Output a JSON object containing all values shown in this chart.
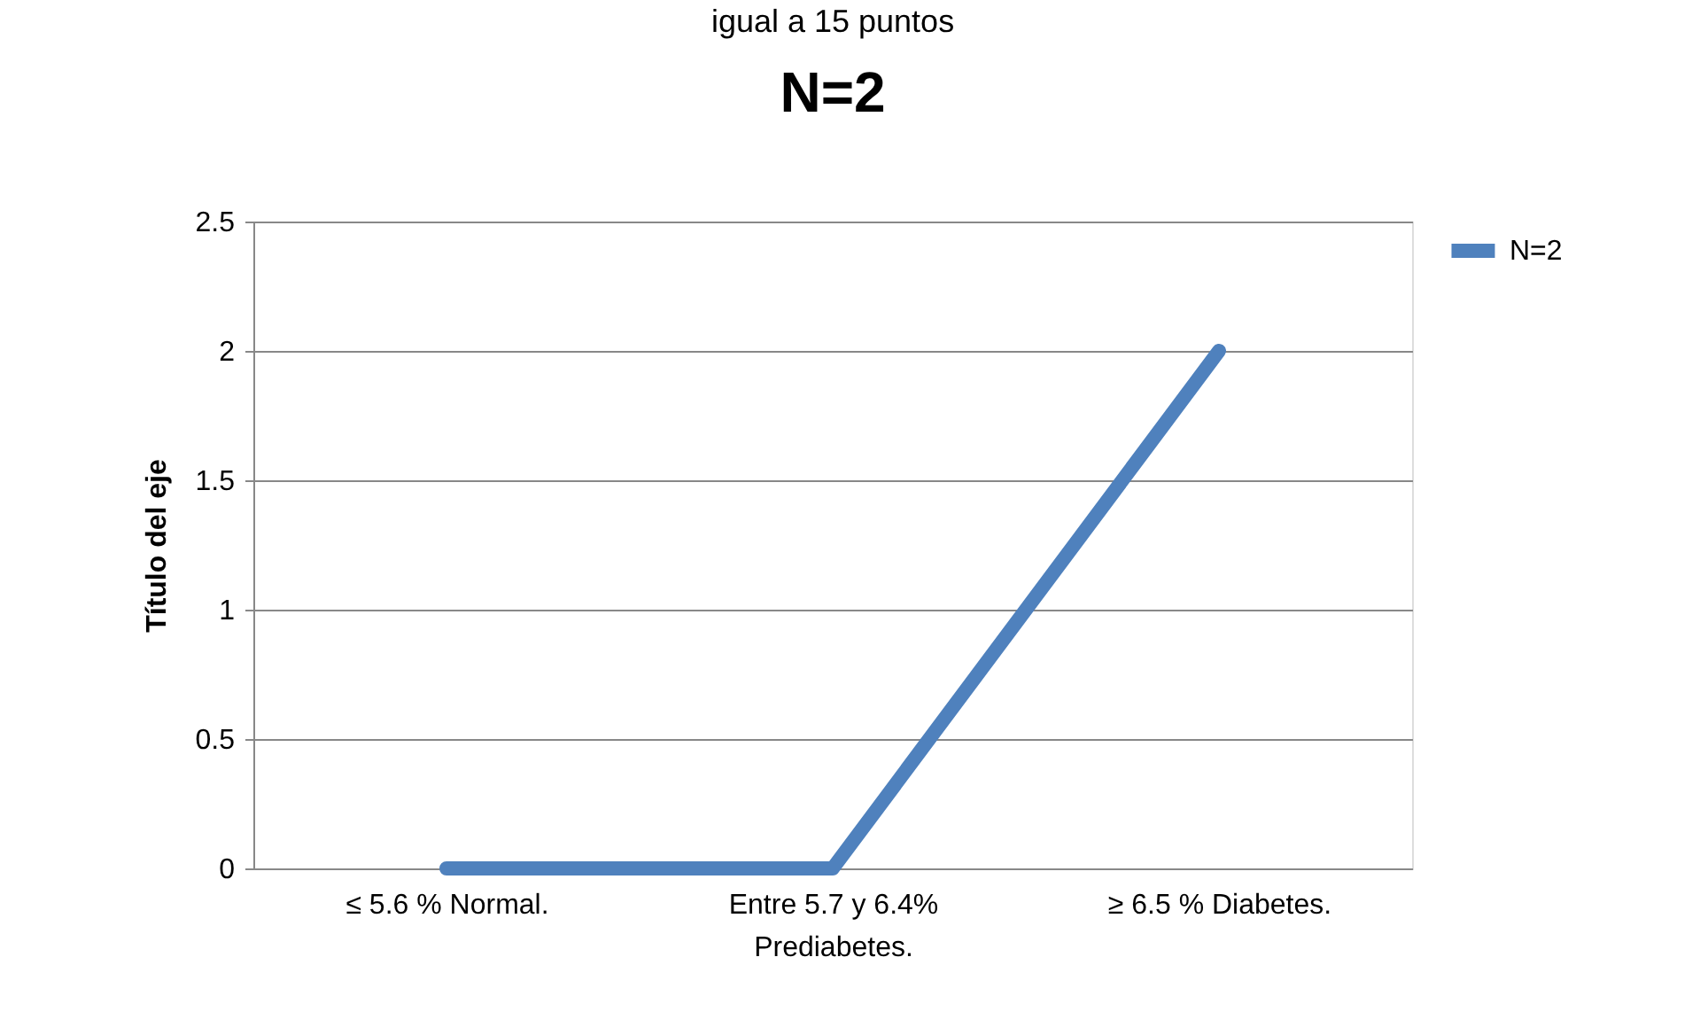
{
  "chart_data": {
    "type": "line",
    "title": "N=2",
    "ylabel": "Título del eje",
    "annotations": [
      "igual a 15 puntos"
    ],
    "categories": [
      "≤ 5.6 % Normal.",
      "Entre 5.7 y 6.4%\nPrediabetes.",
      "≥ 6.5 % Diabetes."
    ],
    "series": [
      {
        "name": "N=2",
        "color": "#4f81bd",
        "values": [
          0,
          0,
          2
        ]
      }
    ],
    "ylim": [
      0,
      2.5
    ],
    "yticks": [
      0,
      0.5,
      1,
      1.5,
      2,
      2.5
    ],
    "grid": "y",
    "legend": "right",
    "marker": "none",
    "line_style": "solid"
  }
}
